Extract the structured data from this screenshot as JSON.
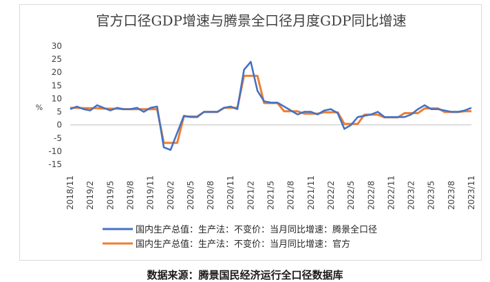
{
  "chart_data": {
    "type": "line",
    "title": "官方口径GDP增速与腾景全口径月度GDP同比增速",
    "ylabel": "%",
    "ylim": [
      -15,
      30
    ],
    "yticks": [
      30,
      25,
      20,
      15,
      10,
      5,
      0,
      -5,
      -10,
      -15
    ],
    "grid": false,
    "legend_position": "bottom",
    "x": [
      "2018/11",
      "2018/12",
      "2019/1",
      "2019/2",
      "2019/3",
      "2019/4",
      "2019/5",
      "2019/6",
      "2019/7",
      "2019/8",
      "2019/9",
      "2019/10",
      "2019/11",
      "2019/12",
      "2020/1",
      "2020/2",
      "2020/3",
      "2020/4",
      "2020/5",
      "2020/6",
      "2020/7",
      "2020/8",
      "2020/9",
      "2020/10",
      "2020/11",
      "2020/12",
      "2021/1",
      "2021/2",
      "2021/3",
      "2021/4",
      "2021/5",
      "2021/6",
      "2021/7",
      "2021/8",
      "2021/9",
      "2021/10",
      "2021/11",
      "2021/12",
      "2022/1",
      "2022/2",
      "2022/3",
      "2022/4",
      "2022/5",
      "2022/6",
      "2022/7",
      "2022/8",
      "2022/9",
      "2022/10",
      "2022/11",
      "2022/12",
      "2023/1",
      "2023/2",
      "2023/3",
      "2023/4",
      "2023/5",
      "2023/6",
      "2023/7",
      "2023/8",
      "2023/9",
      "2023/10",
      "2023/11"
    ],
    "xtick_labels": [
      "2018/11",
      "2019/2",
      "2019/5",
      "2019/8",
      "2019/11",
      "2020/2",
      "2020/5",
      "2020/8",
      "2020/11",
      "2021/2",
      "2021/5",
      "2021/8",
      "2021/11",
      "2022/2",
      "2022/5",
      "2022/8",
      "2022/11",
      "2023/2",
      "2023/5",
      "2023/8",
      "2023/11"
    ],
    "series": [
      {
        "name": "国内生产总值：生产法：不变价：当月同比增速：腾景全口径",
        "color": "#4472C4",
        "values": [
          6.0,
          7.0,
          6.0,
          5.5,
          7.5,
          6.5,
          5.5,
          6.5,
          6.0,
          6.0,
          6.5,
          5.0,
          6.5,
          7.0,
          -8.5,
          -9.5,
          -3.0,
          3.5,
          3.0,
          3.0,
          5.0,
          5.0,
          5.0,
          6.5,
          7.0,
          6.0,
          21.0,
          24.0,
          13.0,
          9.0,
          8.5,
          8.5,
          7.0,
          5.5,
          4.0,
          5.0,
          5.0,
          4.0,
          5.5,
          6.0,
          4.5,
          -1.5,
          0.0,
          3.0,
          3.5,
          4.0,
          5.0,
          3.0,
          3.0,
          3.0,
          3.0,
          4.0,
          6.0,
          7.5,
          6.0,
          6.0,
          5.5,
          5.0,
          5.0,
          5.5,
          6.5
        ]
      },
      {
        "name": "国内生产总值：生产法：不变价：当月同比增速：官方",
        "color": "#ED7D31",
        "values": [
          6.5,
          6.5,
          6.4,
          6.4,
          6.4,
          6.2,
          6.2,
          6.2,
          6.0,
          6.0,
          6.0,
          6.0,
          6.0,
          6.0,
          -6.8,
          -6.8,
          -6.8,
          3.2,
          3.2,
          3.2,
          4.9,
          4.9,
          4.9,
          6.5,
          6.5,
          6.5,
          18.7,
          18.7,
          18.7,
          8.3,
          8.3,
          8.3,
          5.2,
          5.2,
          5.2,
          4.3,
          4.3,
          4.3,
          4.8,
          4.8,
          4.8,
          0.4,
          0.4,
          0.4,
          3.9,
          3.9,
          3.9,
          2.9,
          2.9,
          2.9,
          4.5,
          4.5,
          4.5,
          6.3,
          6.3,
          6.3,
          4.9,
          4.9,
          4.9,
          5.2,
          5.2
        ]
      }
    ]
  },
  "source_note": "数据来源：腾景国民经济运行全口径数据库"
}
